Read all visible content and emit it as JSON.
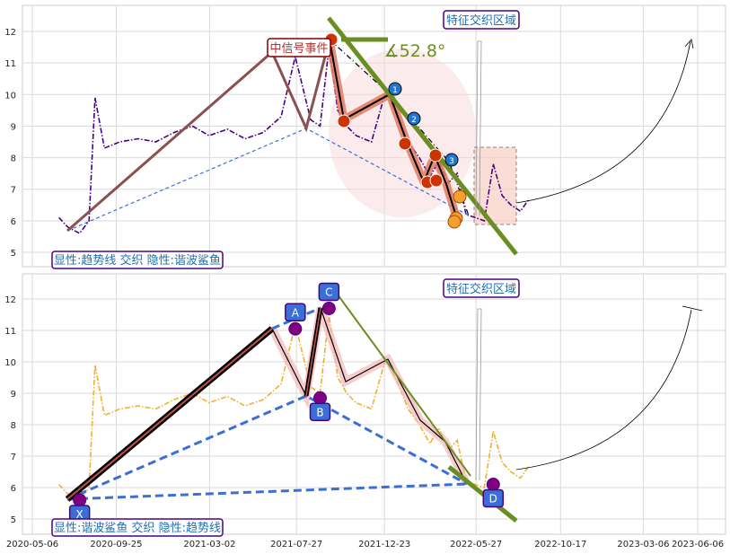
{
  "chart_data": [
    {
      "type": "line",
      "panel": "top",
      "ylim": [
        4.5,
        12.8
      ],
      "yticks": [
        "5",
        "6",
        "7",
        "8",
        "9",
        "10",
        "11",
        "12"
      ],
      "grid": true,
      "region_label": "特征交织区域",
      "event_label": "中信号事件",
      "angle_label": "∡52.8°",
      "caption": "显性:趋势线 交织 隐性:谐波鲨鱼",
      "colors": {
        "price": "#4b0082",
        "trend": "#6b8e23",
        "zigzag": "#c0604a",
        "dashed": "#3a6fd8",
        "markers": "#cc3300"
      },
      "marker_labels": [
        "1",
        "2",
        "3"
      ],
      "series": [
        {
          "x": [
            "2020-06-20",
            "2020-07-05",
            "2020-07-25",
            "2020-08-10",
            "2020-08-20",
            "2020-09-05",
            "2020-10-01",
            "2020-11-01",
            "2020-12-01",
            "2021-01-01",
            "2021-02-01",
            "2021-03-01",
            "2021-04-01",
            "2021-05-01",
            "2021-06-01",
            "2021-07-01",
            "2021-07-25",
            "2021-08-20",
            "2021-09-05",
            "2021-09-20",
            "2021-10-05",
            "2021-10-20",
            "2021-11-05",
            "2021-12-01",
            "2021-12-25",
            "2022-01-15",
            "2022-02-01",
            "2022-02-20",
            "2022-03-10",
            "2022-03-25",
            "2022-04-10",
            "2022-04-25",
            "2022-05-10",
            "2022-05-25",
            "2022-06-10",
            "2022-06-25",
            "2022-07-10",
            "2022-07-25",
            "2022-08-10",
            "2022-08-25"
          ],
          "values": [
            6.1,
            5.8,
            5.6,
            6.0,
            9.9,
            8.3,
            8.5,
            8.6,
            8.5,
            8.8,
            9.0,
            8.7,
            8.9,
            8.6,
            8.8,
            9.3,
            11.2,
            9.2,
            9.0,
            11.5,
            9.5,
            9.0,
            8.7,
            8.5,
            10.1,
            9.3,
            8.5,
            8.0,
            7.4,
            7.9,
            7.2,
            7.5,
            6.2,
            6.1,
            6.0,
            7.8,
            6.8,
            6.5,
            6.3,
            6.7
          ]
        }
      ]
    },
    {
      "type": "line",
      "panel": "bottom",
      "ylim": [
        4.5,
        12.8
      ],
      "yticks": [
        "5",
        "6",
        "7",
        "8",
        "9",
        "10",
        "11",
        "12"
      ],
      "grid": true,
      "region_label": "特征交织区域",
      "caption": "显性:谐波鲨鱼 交织 隐性:趋势线",
      "colors": {
        "price": "#f0b030",
        "pattern": "#000000",
        "dashed": "#3a6fd8",
        "trend": "#6b8e23",
        "points": "#800080"
      },
      "pattern_points": [
        {
          "label": "X",
          "x": "2020-07-25",
          "y": 5.6
        },
        {
          "label": "A",
          "x": "2021-07-25",
          "y": 11.05
        },
        {
          "label": "B",
          "x": "2021-09-05",
          "y": 8.85
        },
        {
          "label": "C",
          "x": "2021-09-20",
          "y": 11.7
        },
        {
          "label": "D",
          "x": "2022-06-25",
          "y": 6.1
        }
      ],
      "xticks": [
        "2020-05-06",
        "2020-09-25",
        "2021-03-02",
        "2021-07-27",
        "2021-12-23",
        "2022-05-27",
        "2022-10-17",
        "2023-03-06",
        "2023-06-06"
      ]
    }
  ]
}
